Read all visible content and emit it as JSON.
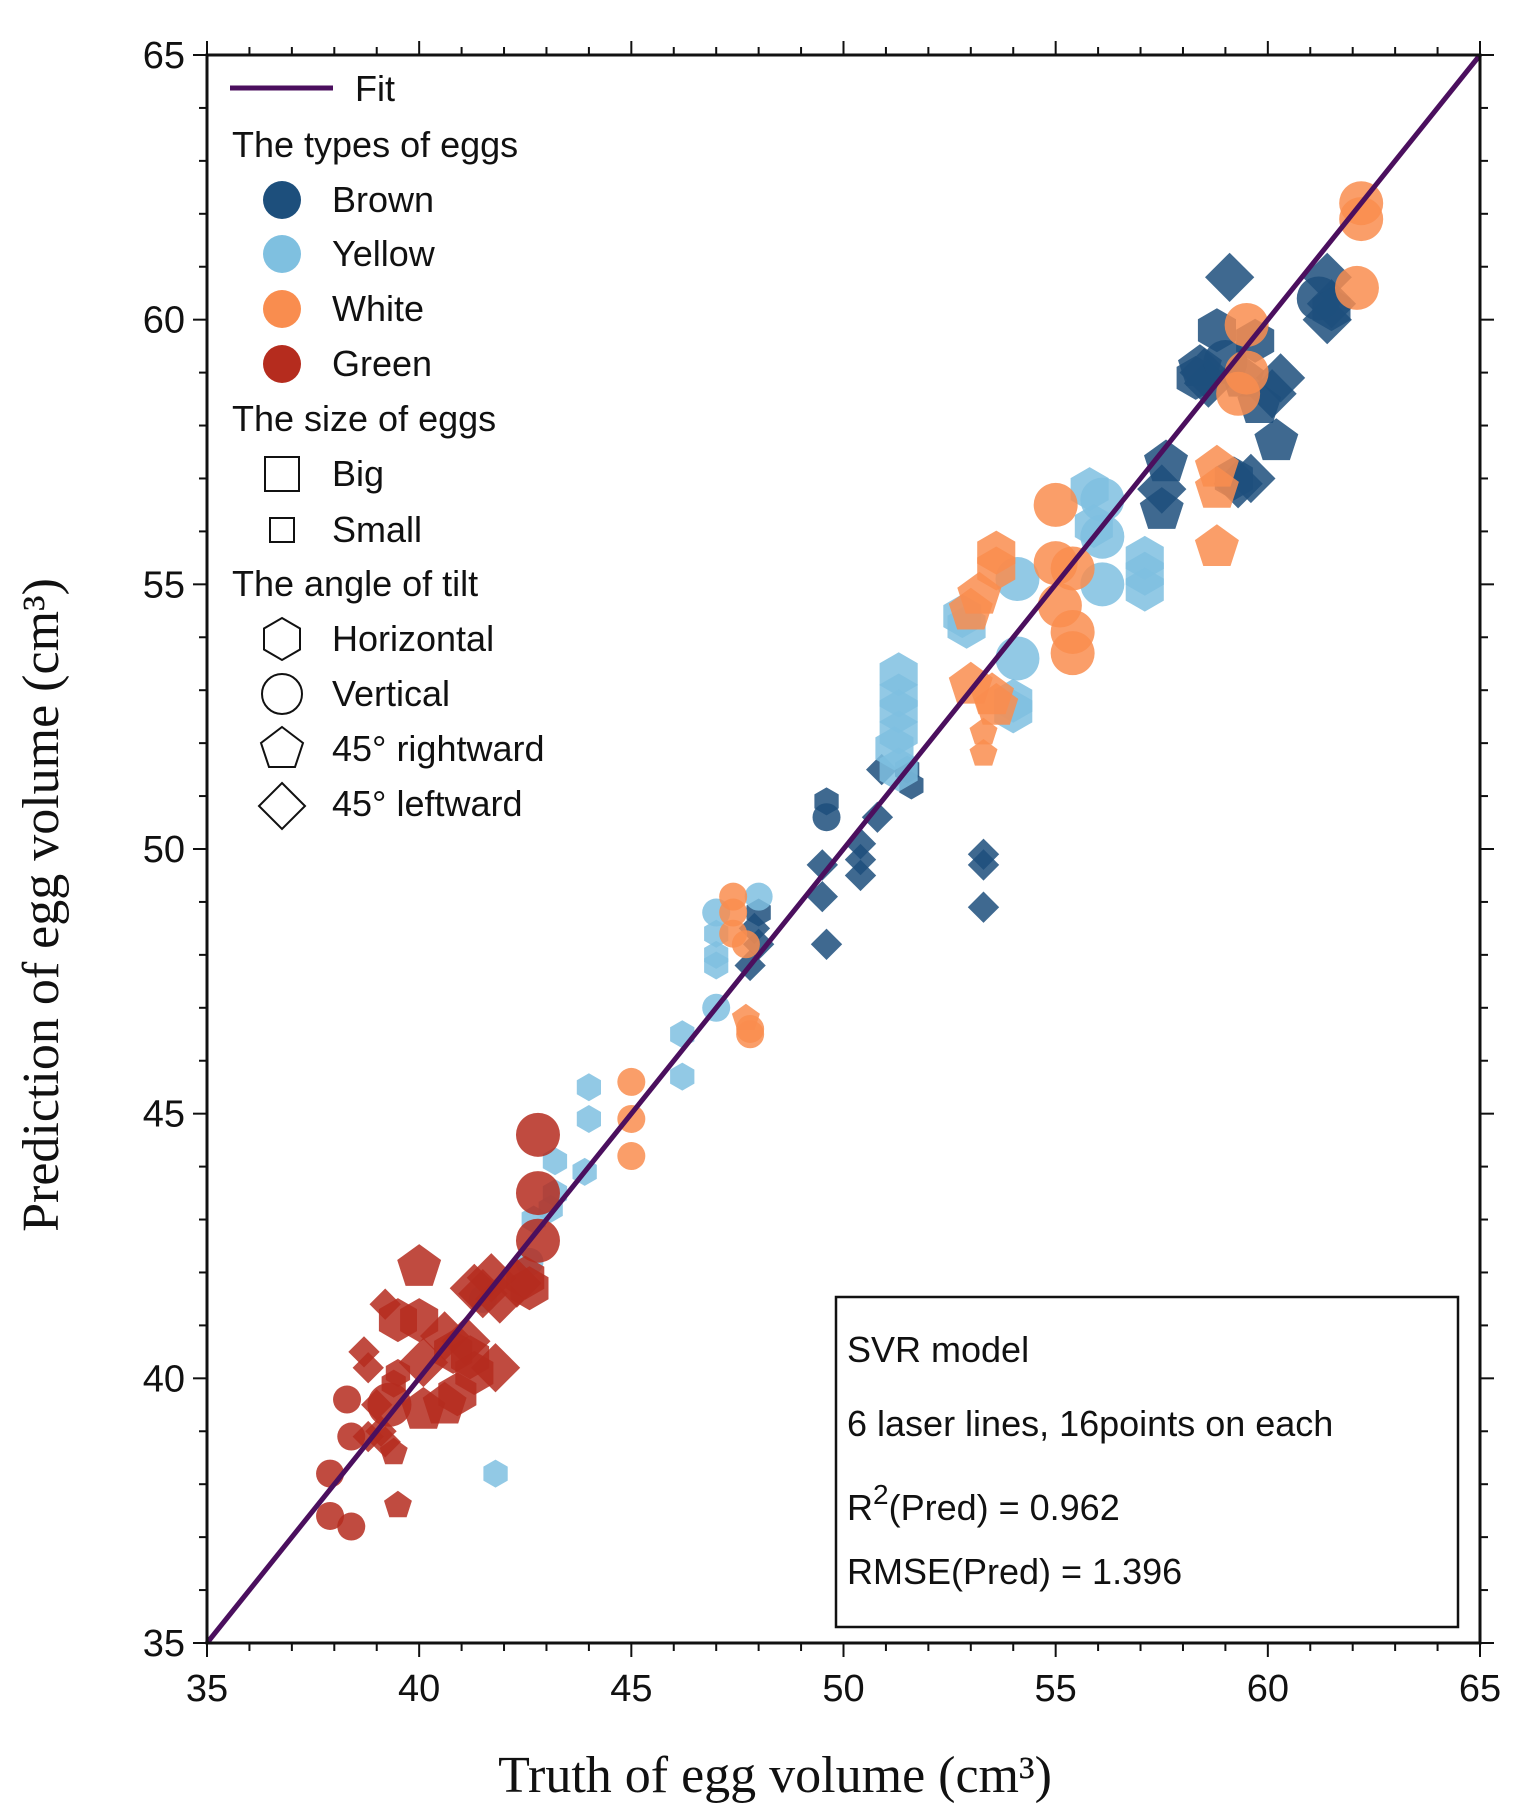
{
  "chart_data": {
    "type": "scatter",
    "xlabel": "Truth of egg volume (cm³)",
    "ylabel": "Prediction of egg volume (cm³)",
    "xlim": [
      35,
      65
    ],
    "ylim": [
      35,
      65
    ],
    "xticks": [
      35,
      40,
      45,
      50,
      55,
      60,
      65
    ],
    "yticks": [
      35,
      40,
      45,
      50,
      55,
      60,
      65
    ],
    "grid": false,
    "legend_position": "top-left",
    "fit_line": {
      "name": "Fit",
      "x": [
        35,
        65
      ],
      "y": [
        35,
        65
      ],
      "color": "#4b0f5e"
    },
    "legend": {
      "fit_label": "Fit",
      "types_title": "The types of eggs",
      "types": [
        {
          "label": "Brown",
          "color": "#1d4f7c"
        },
        {
          "label": "Yellow",
          "color": "#7fc0e0"
        },
        {
          "label": "White",
          "color": "#f98d4f"
        },
        {
          "label": "Green",
          "color": "#b52c1e"
        }
      ],
      "size_title": "The size of eggs",
      "sizes": [
        {
          "label": "Big",
          "marker": "square-big"
        },
        {
          "label": "Small",
          "marker": "square-small"
        }
      ],
      "angle_title": "The angle of tilt",
      "angles": [
        {
          "label": "Horizontal",
          "marker": "hexagon"
        },
        {
          "label": "Vertical",
          "marker": "circle"
        },
        {
          "label": "45° rightward",
          "marker": "pentagon"
        },
        {
          "label": "45° leftward",
          "marker": "diamond"
        }
      ]
    },
    "info_box": {
      "line1": "SVR model",
      "line2": "6 laser lines, 16points on each",
      "line3_r": "R",
      "line3_sup": "2",
      "line3_rest": "(Pred) = 0.962",
      "line4": "RMSE(Pred) = 1.396"
    },
    "series": [
      {
        "name": "Brown",
        "color": "#1d4f7c",
        "points": [
          [
            59.1,
            60.8,
            "D",
            "B"
          ],
          [
            58.8,
            59.8,
            "H",
            "B"
          ],
          [
            58.5,
            59.0,
            "D",
            "B"
          ],
          [
            58.3,
            58.9,
            "H",
            "B"
          ],
          [
            58.6,
            58.8,
            "D",
            "B"
          ],
          [
            59.0,
            59.2,
            "C",
            "B"
          ],
          [
            59.4,
            58.9,
            "P",
            "B"
          ],
          [
            59.8,
            58.4,
            "P",
            "B"
          ],
          [
            60.1,
            58.6,
            "D",
            "B"
          ],
          [
            60.3,
            58.9,
            "D",
            "B"
          ],
          [
            60.2,
            57.7,
            "P",
            "B"
          ],
          [
            59.6,
            57.0,
            "D",
            "B"
          ],
          [
            59.3,
            56.9,
            "D",
            "B"
          ],
          [
            59.7,
            59.6,
            "H",
            "B"
          ],
          [
            57.6,
            57.3,
            "P",
            "B"
          ],
          [
            57.5,
            56.8,
            "D",
            "B"
          ],
          [
            57.5,
            56.4,
            "P",
            "B"
          ],
          [
            61.4,
            60.8,
            "D",
            "B"
          ],
          [
            61.5,
            60.3,
            "D",
            "B"
          ],
          [
            61.4,
            60.0,
            "D",
            "B"
          ],
          [
            61.2,
            60.4,
            "C",
            "B"
          ],
          [
            59.2,
            57.0,
            "H",
            "B"
          ],
          [
            49.6,
            50.9,
            "H",
            "S"
          ],
          [
            49.6,
            50.6,
            "C",
            "S"
          ],
          [
            49.5,
            49.7,
            "D",
            "S"
          ],
          [
            49.5,
            49.1,
            "D",
            "S"
          ],
          [
            49.6,
            48.2,
            "D",
            "S"
          ],
          [
            48.0,
            48.8,
            "H",
            "S"
          ],
          [
            47.9,
            48.5,
            "D",
            "S"
          ],
          [
            48.0,
            48.2,
            "D",
            "S"
          ],
          [
            47.8,
            47.8,
            "D",
            "S"
          ],
          [
            50.4,
            50.1,
            "D",
            "S"
          ],
          [
            50.4,
            49.8,
            "D",
            "S"
          ],
          [
            50.4,
            49.5,
            "D",
            "S"
          ],
          [
            50.8,
            50.6,
            "D",
            "S"
          ],
          [
            50.9,
            51.5,
            "D",
            "S"
          ],
          [
            51.5,
            51.5,
            "H",
            "S"
          ],
          [
            51.6,
            51.2,
            "H",
            "S"
          ],
          [
            53.3,
            49.9,
            "D",
            "S"
          ],
          [
            53.3,
            49.7,
            "D",
            "S"
          ],
          [
            53.3,
            48.9,
            "D",
            "S"
          ],
          [
            61.5,
            60.2,
            "H",
            "B"
          ],
          [
            58.4,
            59.1,
            "P",
            "B"
          ]
        ]
      },
      {
        "name": "Yellow",
        "color": "#7fc0e0",
        "points": [
          [
            55.8,
            56.8,
            "H",
            "B"
          ],
          [
            56.1,
            56.6,
            "C",
            "B"
          ],
          [
            55.9,
            56.1,
            "H",
            "B"
          ],
          [
            56.1,
            55.9,
            "C",
            "B"
          ],
          [
            56.1,
            55.0,
            "C",
            "B"
          ],
          [
            57.1,
            55.5,
            "H",
            "B"
          ],
          [
            57.1,
            55.2,
            "H",
            "B"
          ],
          [
            57.1,
            54.9,
            "H",
            "B"
          ],
          [
            54.1,
            55.1,
            "C",
            "B"
          ],
          [
            52.8,
            54.4,
            "H",
            "B"
          ],
          [
            52.9,
            54.2,
            "H",
            "B"
          ],
          [
            54.1,
            53.6,
            "C",
            "B"
          ],
          [
            54.0,
            52.8,
            "H",
            "B"
          ],
          [
            54.0,
            52.6,
            "H",
            "B"
          ],
          [
            51.3,
            53.3,
            "H",
            "B"
          ],
          [
            51.3,
            52.9,
            "H",
            "B"
          ],
          [
            51.3,
            52.6,
            "H",
            "B"
          ],
          [
            51.3,
            52.2,
            "H",
            "B"
          ],
          [
            51.2,
            51.9,
            "H",
            "B"
          ],
          [
            51.3,
            51.5,
            "H",
            "B"
          ],
          [
            47.0,
            48.8,
            "C",
            "S"
          ],
          [
            47.0,
            48.4,
            "H",
            "S"
          ],
          [
            47.0,
            48.0,
            "H",
            "S"
          ],
          [
            47.0,
            47.8,
            "H",
            "S"
          ],
          [
            48.0,
            49.1,
            "C",
            "S"
          ],
          [
            47.0,
            47.0,
            "C",
            "S"
          ],
          [
            46.2,
            46.5,
            "H",
            "S"
          ],
          [
            46.2,
            45.7,
            "H",
            "S"
          ],
          [
            44.0,
            45.5,
            "H",
            "S"
          ],
          [
            44.0,
            44.9,
            "H",
            "S"
          ],
          [
            43.9,
            43.9,
            "H",
            "S"
          ],
          [
            43.2,
            44.1,
            "H",
            "S"
          ],
          [
            43.2,
            43.5,
            "H",
            "S"
          ],
          [
            43.1,
            43.2,
            "H",
            "S"
          ],
          [
            42.7,
            43.0,
            "H",
            "S"
          ],
          [
            41.8,
            38.2,
            "H",
            "S"
          ],
          [
            42.6,
            42.2,
            "C",
            "S"
          ],
          [
            41.5,
            41.5,
            "C",
            "S"
          ]
        ]
      },
      {
        "name": "White",
        "color": "#f98d4f",
        "points": [
          [
            62.2,
            62.2,
            "C",
            "B"
          ],
          [
            62.2,
            61.9,
            "C",
            "B"
          ],
          [
            62.1,
            60.6,
            "C",
            "B"
          ],
          [
            59.5,
            59.9,
            "C",
            "B"
          ],
          [
            59.5,
            59.0,
            "C",
            "B"
          ],
          [
            59.3,
            58.6,
            "C",
            "B"
          ],
          [
            58.8,
            57.2,
            "P",
            "B"
          ],
          [
            58.8,
            56.8,
            "P",
            "B"
          ],
          [
            58.8,
            55.7,
            "P",
            "B"
          ],
          [
            55.0,
            56.5,
            "C",
            "B"
          ],
          [
            55.0,
            55.4,
            "C",
            "B"
          ],
          [
            55.4,
            55.3,
            "C",
            "B"
          ],
          [
            55.1,
            54.6,
            "C",
            "B"
          ],
          [
            55.4,
            54.1,
            "C",
            "B"
          ],
          [
            55.4,
            53.7,
            "C",
            "B"
          ],
          [
            53.6,
            55.6,
            "H",
            "B"
          ],
          [
            53.6,
            55.3,
            "H",
            "B"
          ],
          [
            53.2,
            54.8,
            "P",
            "B"
          ],
          [
            53.0,
            54.5,
            "P",
            "B"
          ],
          [
            53.0,
            53.1,
            "P",
            "B"
          ],
          [
            53.5,
            52.9,
            "P",
            "B"
          ],
          [
            53.6,
            52.7,
            "P",
            "B"
          ],
          [
            53.3,
            52.2,
            "P",
            "S"
          ],
          [
            53.3,
            51.8,
            "P",
            "S"
          ],
          [
            47.4,
            49.1,
            "C",
            "S"
          ],
          [
            47.4,
            48.8,
            "C",
            "S"
          ],
          [
            47.4,
            48.4,
            "C",
            "S"
          ],
          [
            47.7,
            48.2,
            "C",
            "S"
          ],
          [
            47.7,
            46.8,
            "P",
            "S"
          ],
          [
            47.8,
            46.6,
            "C",
            "S"
          ],
          [
            47.8,
            46.5,
            "C",
            "S"
          ],
          [
            45.0,
            45.6,
            "C",
            "S"
          ],
          [
            45.0,
            44.9,
            "C",
            "S"
          ],
          [
            45.0,
            44.2,
            "C",
            "S"
          ]
        ]
      },
      {
        "name": "Green",
        "color": "#b52c1e",
        "points": [
          [
            42.8,
            44.6,
            "C",
            "B"
          ],
          [
            42.8,
            43.5,
            "C",
            "B"
          ],
          [
            42.8,
            42.6,
            "C",
            "B"
          ],
          [
            40.0,
            42.1,
            "P",
            "B"
          ],
          [
            42.5,
            41.9,
            "H",
            "B"
          ],
          [
            42.6,
            41.7,
            "H",
            "B"
          ],
          [
            42.3,
            41.8,
            "D",
            "B"
          ],
          [
            41.7,
            41.9,
            "D",
            "B"
          ],
          [
            41.5,
            41.6,
            "D",
            "B"
          ],
          [
            41.3,
            41.7,
            "D",
            "B"
          ],
          [
            41.9,
            41.5,
            "D",
            "B"
          ],
          [
            39.2,
            41.4,
            "D",
            "S"
          ],
          [
            39.5,
            41.1,
            "H",
            "B"
          ],
          [
            40.0,
            41.1,
            "H",
            "B"
          ],
          [
            40.6,
            40.8,
            "D",
            "B"
          ],
          [
            41.1,
            40.7,
            "D",
            "B"
          ],
          [
            40.8,
            40.5,
            "H",
            "B"
          ],
          [
            41.2,
            40.4,
            "H",
            "B"
          ],
          [
            41.8,
            40.2,
            "D",
            "B"
          ],
          [
            41.3,
            40.1,
            "H",
            "B"
          ],
          [
            40.1,
            40.3,
            "D",
            "B"
          ],
          [
            38.7,
            40.5,
            "D",
            "S"
          ],
          [
            38.8,
            40.2,
            "D",
            "S"
          ],
          [
            39.5,
            40.1,
            "H",
            "S"
          ],
          [
            39.4,
            39.9,
            "H",
            "S"
          ],
          [
            39.0,
            39.5,
            "D",
            "S"
          ],
          [
            39.3,
            39.5,
            "C",
            "B"
          ],
          [
            40.1,
            39.4,
            "P",
            "B"
          ],
          [
            40.6,
            39.5,
            "P",
            "B"
          ],
          [
            38.3,
            39.6,
            "C",
            "S"
          ],
          [
            38.4,
            38.9,
            "C",
            "S"
          ],
          [
            38.8,
            38.9,
            "D",
            "S"
          ],
          [
            39.4,
            38.6,
            "P",
            "S"
          ],
          [
            39.2,
            38.8,
            "D",
            "S"
          ],
          [
            37.9,
            38.2,
            "C",
            "S"
          ],
          [
            39.5,
            37.6,
            "P",
            "S"
          ],
          [
            37.9,
            37.4,
            "C",
            "S"
          ],
          [
            38.4,
            37.2,
            "C",
            "S"
          ],
          [
            39.1,
            39.0,
            "D",
            "S"
          ],
          [
            40.9,
            39.7,
            "H",
            "B"
          ]
        ]
      }
    ]
  }
}
